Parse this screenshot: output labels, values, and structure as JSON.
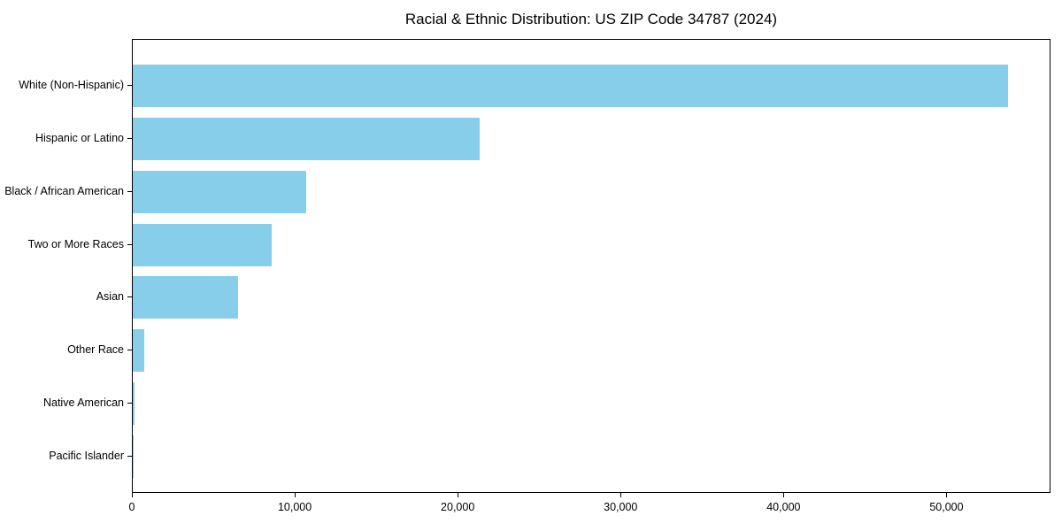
{
  "title": "Racial & Ethnic Distribution: US ZIP Code 34787 (2024)",
  "chart_data": {
    "type": "bar",
    "orientation": "horizontal",
    "title": "Racial & Ethnic Distribution: US ZIP Code 34787 (2024)",
    "xlabel": "",
    "ylabel": "",
    "categories": [
      "White (Non-Hispanic)",
      "Hispanic or Latino",
      "Black / African American",
      "Two or More Races",
      "Asian",
      "Other Race",
      "Native American",
      "Pacific Islander"
    ],
    "values": [
      53700,
      21300,
      10650,
      8550,
      6450,
      710,
      90,
      25
    ],
    "xlim": [
      0,
      56385
    ],
    "x_ticks": [
      0,
      10000,
      20000,
      30000,
      40000,
      50000
    ],
    "x_tick_labels": [
      "0",
      "10,000",
      "20,000",
      "30,000",
      "40,000",
      "50,000"
    ],
    "bar_color": "#87CEEB",
    "frame_color": "#000000",
    "text_color": "#000000",
    "grid": false,
    "legend": null
  }
}
